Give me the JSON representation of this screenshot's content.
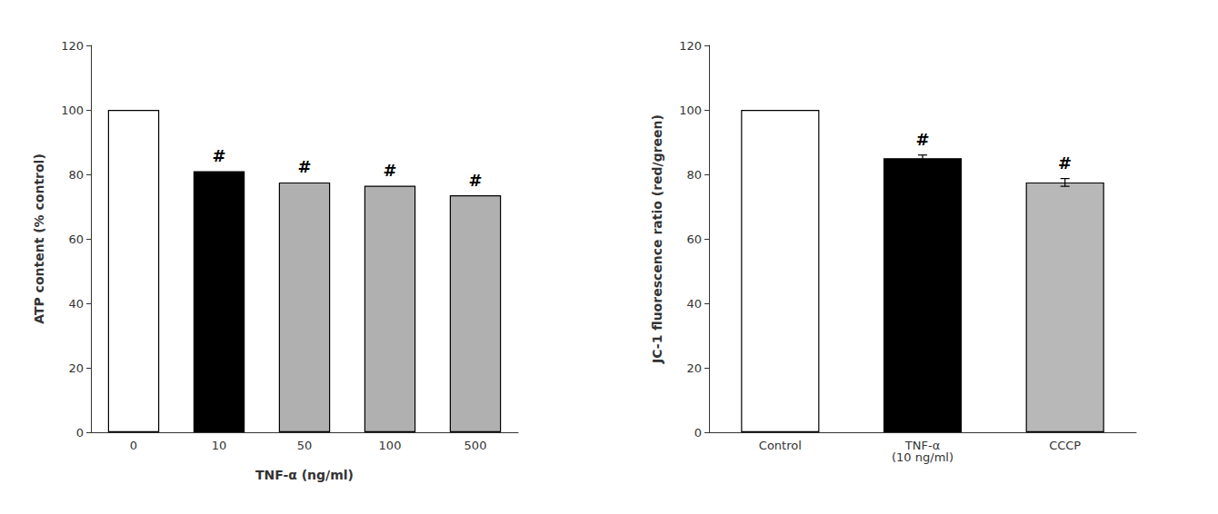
{
  "chart_data": [
    {
      "type": "bar",
      "categories": [
        "0",
        "10",
        "50",
        "100",
        "500"
      ],
      "values": [
        100,
        81,
        77.5,
        76.5,
        73.5
      ],
      "colors": [
        "#ffffff",
        "#000000",
        "#b0b0b0",
        "#b0b0b0",
        "#b0b0b0"
      ],
      "xlabel": "TNF-α (ng/ml)",
      "ylabel": "ATP content (% control)",
      "ylim": [
        0,
        120
      ],
      "yticks": [
        0,
        20,
        40,
        60,
        80,
        100,
        120
      ],
      "annotations": [
        {
          "text": "#",
          "x": "10"
        },
        {
          "text": "#",
          "x": "50"
        },
        {
          "text": "#",
          "x": "100"
        },
        {
          "text": "#",
          "x": "500"
        }
      ],
      "grid": false
    },
    {
      "type": "bar",
      "categories": [
        "Control",
        "TNF-α\n(10 ng/ml)",
        "CCCP"
      ],
      "values": [
        100,
        85,
        77.5
      ],
      "errors": [
        0,
        1.0,
        1.2
      ],
      "colors": [
        "#ffffff",
        "#000000",
        "#b8b8b8"
      ],
      "ylabel": "JC-1 fluorescence ratio (red/green)",
      "ylim": [
        0,
        120
      ],
      "yticks": [
        0,
        20,
        40,
        60,
        80,
        100,
        120
      ],
      "annotations": [
        {
          "text": "#",
          "x": "TNF-α\n(10 ng/ml)"
        },
        {
          "text": "#",
          "x": "CCCP"
        }
      ],
      "grid": false
    }
  ]
}
